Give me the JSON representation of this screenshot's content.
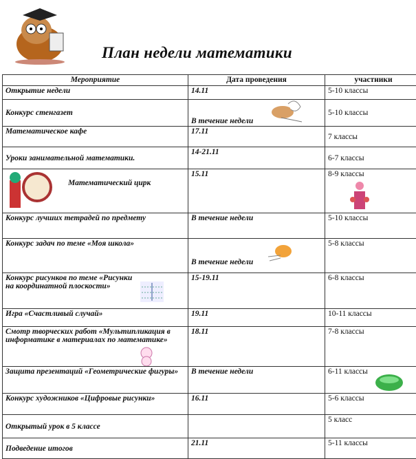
{
  "title": "План недели математики",
  "headers": {
    "event": "Мероприятие",
    "date": "Дата проведения",
    "participants": "участники"
  },
  "rows": [
    {
      "event": "Открытие недели",
      "date": "14.11",
      "participants": "5-10 классы"
    },
    {
      "event": "Конкурс стенгазет",
      "date": "В течение недели",
      "participants": "5-10 классы"
    },
    {
      "event": "Математическое кафе",
      "date": "17.11",
      "participants": "7 классы"
    },
    {
      "event": "Уроки занимательной математики.",
      "date": "14-21.11",
      "participants": "6-7 классы"
    },
    {
      "event": "Математический цирк",
      "date": "15.11",
      "participants": "8-9 классы"
    },
    {
      "event": "Конкурс лучших тетрадей по предмету",
      "date": "В течение недели",
      "participants": "5-10 классы"
    },
    {
      "event": "Конкурс задач по теме «Моя школа»",
      "date": "В течение недели",
      "participants": "5-8 классы"
    },
    {
      "event": "Конкурс рисунков по теме «Рисунки на координатной плоскости»",
      "date": "15-19.11",
      "participants": "6-8 классы"
    },
    {
      "event": "Игра «Счастливый случай»",
      "date": "19.11",
      "participants": "10-11 классы"
    },
    {
      "event": "Смотр творческих работ «Мультипликация в информатике в материалах по математике»",
      "date": "18.11",
      "participants": "7-8 классы"
    },
    {
      "event": "Защита презентаций «Геометрические фигуры»",
      "date": "В течение недели",
      "participants": "6-11 классы"
    },
    {
      "event": "Конкурс художников «Цифровые рисунки»",
      "date": "16.11",
      "participants": "5-6 классы"
    },
    {
      "event": "Открытый урок в 5 классе",
      "date": "",
      "participants": "5 класс"
    },
    {
      "event": "Подведение итогов",
      "date": "21.11",
      "participants": "5-11 классы"
    }
  ]
}
